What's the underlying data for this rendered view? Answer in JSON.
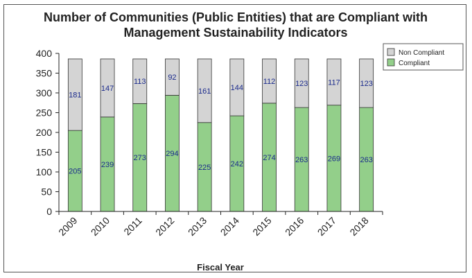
{
  "chart_data": {
    "type": "bar",
    "stacked": true,
    "title_line1": "Number of Communities (Public Entities) that are Compliant with",
    "title_line2": "Management Sustainability Indicators",
    "xlabel": "Fiscal Year",
    "ylabel": "",
    "ylim": [
      0,
      400
    ],
    "yticks": [
      0,
      50,
      100,
      150,
      200,
      250,
      300,
      350,
      400
    ],
    "categories": [
      "2009",
      "2010",
      "2011",
      "2012",
      "2013",
      "2014",
      "2015",
      "2016",
      "2017",
      "2018"
    ],
    "series": [
      {
        "name": "Compliant",
        "color": "#93cf8a",
        "values": [
          205,
          239,
          273,
          294,
          225,
          242,
          274,
          263,
          269,
          263
        ]
      },
      {
        "name": "Non Compliant",
        "color": "#d4d4d4",
        "values": [
          181,
          147,
          113,
          92,
          161,
          144,
          112,
          123,
          117,
          123
        ]
      }
    ],
    "legend_position": "top-right",
    "grid": false
  }
}
